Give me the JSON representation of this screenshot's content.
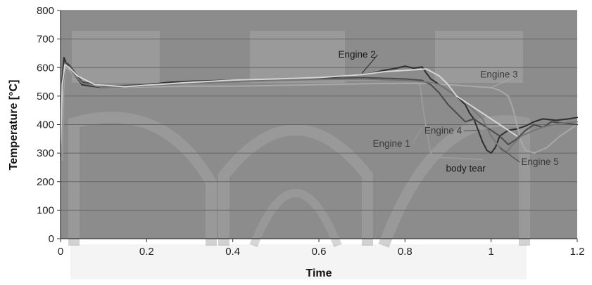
{
  "chart_data": {
    "type": "line",
    "title": "",
    "xlabel": "Time",
    "ylabel": "Temperature [°C]",
    "xlim": [
      0,
      1.2
    ],
    "ylim": [
      0,
      800
    ],
    "x_ticks": [
      0,
      0.2,
      0.4,
      0.6,
      0.8,
      1,
      1.2
    ],
    "x_tick_labels": [
      "0",
      "0.2",
      "0.4",
      "0.6",
      "0.8",
      "1",
      "1.2"
    ],
    "y_ticks": [
      0,
      100,
      200,
      300,
      400,
      500,
      600,
      700,
      800
    ],
    "y_tick_labels": [
      "0",
      "100",
      "200",
      "300",
      "400",
      "500",
      "600",
      "700",
      "800"
    ],
    "grid": "horizontal",
    "colors": {
      "plot_bg": "#8c8c8c",
      "grid": "#666666",
      "watermark": "#a6a6a6",
      "engine1": "#9a9a9a",
      "engine2": "#2e2e2e",
      "engine3": "#a8a8a8",
      "engine4": "#4a4a4a",
      "engine5": "#777777",
      "engine_light": "#d6d6d6"
    },
    "series": [
      {
        "name": "Engine 1",
        "color_key": "engine1",
        "x": [
          0,
          0.004,
          0.008,
          0.012,
          0.02,
          0.03,
          0.05,
          0.08,
          0.12,
          0.2,
          0.3,
          0.4,
          0.5,
          0.6,
          0.7,
          0.78,
          0.82,
          0.835,
          0.84,
          0.85,
          0.86,
          0.87,
          0.9,
          0.95,
          0.98
        ],
        "y": [
          280,
          275,
          560,
          600,
          590,
          570,
          540,
          535,
          530,
          535,
          545,
          550,
          553,
          555,
          556,
          557,
          552,
          540,
          480,
          380,
          300,
          285,
          283,
          280,
          278
        ]
      },
      {
        "name": "Engine 2",
        "color_key": "engine2",
        "x": [
          0,
          0.004,
          0.008,
          0.012,
          0.02,
          0.03,
          0.05,
          0.07,
          0.1,
          0.15,
          0.2,
          0.25,
          0.3,
          0.4,
          0.5,
          0.6,
          0.65,
          0.7,
          0.72,
          0.75,
          0.78,
          0.8,
          0.82,
          0.84,
          0.85,
          0.86,
          0.88,
          0.9,
          0.92,
          0.94,
          0.95,
          0.96,
          0.97,
          0.98,
          0.99,
          1.0,
          1.01,
          1.02,
          1.04,
          1.06,
          1.08,
          1.1,
          1.12,
          1.15,
          1.18,
          1.2
        ],
        "y": [
          300,
          560,
          635,
          620,
          600,
          580,
          540,
          535,
          530,
          532,
          540,
          548,
          552,
          556,
          558,
          562,
          568,
          575,
          580,
          590,
          598,
          605,
          598,
          602,
          580,
          560,
          540,
          520,
          500,
          470,
          440,
          420,
          380,
          340,
          310,
          300,
          320,
          360,
          380,
          385,
          395,
          410,
          420,
          415,
          420,
          425
        ]
      },
      {
        "name": "Engine 3",
        "color_key": "engine3",
        "x": [
          0,
          0.004,
          0.01,
          0.02,
          0.03,
          0.05,
          0.1,
          0.2,
          0.3,
          0.4,
          0.5,
          0.6,
          0.7,
          0.8,
          0.85,
          0.9,
          0.95,
          1.0,
          1.02,
          1.04,
          1.05,
          1.06,
          1.07,
          1.08,
          1.1,
          1.13,
          1.16,
          1.2
        ],
        "y": [
          290,
          450,
          600,
          595,
          580,
          545,
          530,
          532,
          535,
          535,
          537,
          540,
          543,
          545,
          544,
          540,
          535,
          530,
          520,
          500,
          460,
          400,
          340,
          310,
          300,
          320,
          360,
          400
        ]
      },
      {
        "name": "Engine 4",
        "color_key": "engine4",
        "x": [
          0,
          0.004,
          0.01,
          0.02,
          0.03,
          0.05,
          0.1,
          0.2,
          0.3,
          0.4,
          0.5,
          0.6,
          0.7,
          0.8,
          0.84,
          0.86,
          0.88,
          0.9,
          0.92,
          0.94,
          0.96,
          0.98,
          1.0,
          1.02,
          1.04,
          1.06,
          1.08,
          1.1,
          1.12,
          1.14,
          1.17,
          1.2
        ],
        "y": [
          300,
          520,
          620,
          610,
          590,
          550,
          535,
          540,
          550,
          555,
          558,
          560,
          565,
          560,
          555,
          540,
          510,
          470,
          440,
          410,
          420,
          400,
          380,
          360,
          330,
          350,
          380,
          400,
          390,
          410,
          405,
          400
        ]
      },
      {
        "name": "Engine 5",
        "color_key": "engine5",
        "x": [
          0,
          0.004,
          0.01,
          0.02,
          0.03,
          0.05,
          0.1,
          0.2,
          0.3,
          0.4,
          0.5,
          0.6,
          0.7,
          0.8,
          0.85,
          0.88,
          0.9,
          0.92,
          0.94,
          0.96,
          0.98,
          1.0,
          1.02,
          1.03,
          1.04,
          1.05,
          1.07,
          1.1,
          1.13,
          1.16,
          1.2
        ],
        "y": [
          290,
          500,
          615,
          600,
          580,
          545,
          530,
          535,
          545,
          550,
          555,
          558,
          560,
          555,
          550,
          540,
          520,
          500,
          480,
          450,
          420,
          360,
          320,
          300,
          310,
          330,
          360,
          380,
          395,
          405,
          410
        ]
      },
      {
        "name": "",
        "color_key": "engine_light",
        "x": [
          0,
          0.004,
          0.01,
          0.02,
          0.04,
          0.08,
          0.15,
          0.2,
          0.3,
          0.4,
          0.5,
          0.6,
          0.7,
          0.75,
          0.8,
          0.85,
          0.88,
          0.9,
          0.92,
          0.95,
          0.98,
          1.0,
          1.02,
          1.04,
          1.06
        ],
        "y": [
          300,
          540,
          610,
          600,
          570,
          540,
          533,
          538,
          548,
          556,
          560,
          565,
          575,
          585,
          590,
          595,
          570,
          540,
          500,
          470,
          440,
          420,
          400,
          380,
          360
        ]
      }
    ],
    "annotations": [
      {
        "text": "Engine 2",
        "x": 0.645,
        "y": 635,
        "target": [
          0.7,
          580
        ],
        "color_key": "engine2",
        "anchor": "start"
      },
      {
        "text": "Engine 3",
        "x": 0.975,
        "y": 565,
        "target": [
          1.0,
          530
        ],
        "color_key": "engine3",
        "anchor": "start"
      },
      {
        "text": "Engine 1",
        "x": 0.725,
        "y": 322,
        "target": [
          0.84,
          390
        ],
        "color_key": "engine1",
        "anchor": "start"
      },
      {
        "text": "Engine 4",
        "x": 0.845,
        "y": 368,
        "target": [
          0.975,
          380
        ],
        "color_key": "engine4",
        "anchor": "start"
      },
      {
        "text": "body tear",
        "x": 0.895,
        "y": 235,
        "target": null,
        "color_key": "engine4",
        "anchor": "start"
      },
      {
        "text": "Engine 5",
        "x": 1.07,
        "y": 258,
        "target": [
          1.02,
          320
        ],
        "color_key": "engine4",
        "anchor": "start"
      }
    ]
  }
}
